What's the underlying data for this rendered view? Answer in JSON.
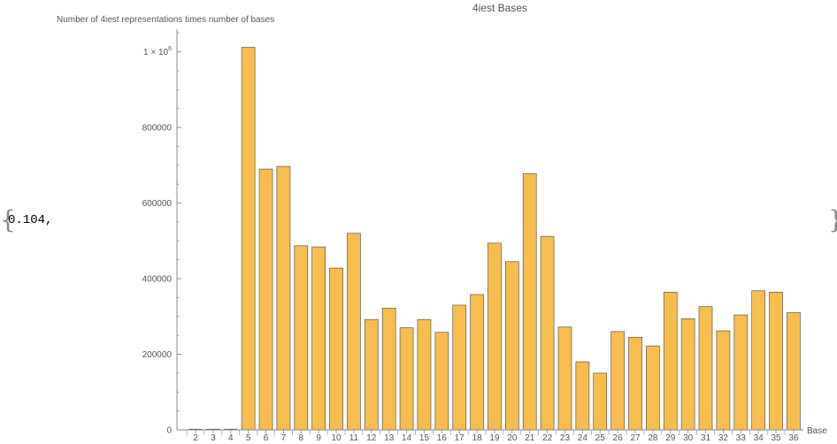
{
  "prefix_text": "0.104,",
  "chart_data": {
    "type": "bar",
    "title": "4iest Bases",
    "xlabel": "Base",
    "ylabel": "Number of 4iest representations times number of bases",
    "categories": [
      "2",
      "3",
      "4",
      "5",
      "6",
      "7",
      "8",
      "9",
      "10",
      "11",
      "12",
      "13",
      "14",
      "15",
      "16",
      "17",
      "18",
      "19",
      "20",
      "21",
      "22",
      "23",
      "24",
      "25",
      "26",
      "27",
      "28",
      "29",
      "30",
      "31",
      "32",
      "33",
      "34",
      "35",
      "36"
    ],
    "values": [
      1000,
      1000,
      1000,
      1012000,
      690000,
      697000,
      487000,
      484000,
      428000,
      520000,
      292000,
      322000,
      270000,
      292000,
      258000,
      330000,
      358000,
      494000,
      445000,
      678000,
      512000,
      272000,
      180000,
      150000,
      260000,
      245000,
      222000,
      364000,
      294000,
      326000,
      262000,
      304000,
      368000,
      364000,
      310000
    ],
    "yticks": [
      "0",
      "200000",
      "400000",
      "600000",
      "800000"
    ],
    "ytick_values": [
      0,
      200000,
      400000,
      600000,
      800000
    ],
    "ymax_tick_mantissa": "1 × 10",
    "ymax_tick_exponent": "6",
    "ymax_tick_value": 1000000,
    "ylim": [
      0,
      1060000
    ],
    "colors": {
      "bar_fill": "#f9bd4f",
      "bar_stroke": "#5a5a5a",
      "axis": "#888888"
    }
  }
}
